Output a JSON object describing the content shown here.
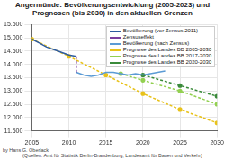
{
  "chart_data": {
    "type": "line",
    "title": "Angermünde: Bevölkerungsentwicklung (2005-2023) und Prognosen (bis 2030) in den aktuellen Grenzen",
    "annotations": [
      "by Hans G. Oberlack",
      "(Quellen: Amt für Statistik Berlin-Brandenburg, Landesamt für Bauen und Verkehr)"
    ],
    "xlim": [
      2005,
      2030
    ],
    "xticks": [
      2005,
      2010,
      2015,
      2020,
      2025,
      2030
    ],
    "ylim": [
      11500,
      15500
    ],
    "yticks": [
      {
        "value": 11500,
        "label": "11.500"
      },
      {
        "value": 12000,
        "label": "12.000"
      },
      {
        "value": 12500,
        "label": "12.500"
      },
      {
        "value": 13000,
        "label": "13.000"
      },
      {
        "value": 13500,
        "label": "13.500"
      },
      {
        "value": 14000,
        "label": "14.000"
      },
      {
        "value": 14500,
        "label": "14.500"
      },
      {
        "value": 15000,
        "label": "15.000"
      },
      {
        "value": 15500,
        "label": "15.500"
      }
    ],
    "grid": true,
    "legend": "top-right",
    "series": [
      {
        "name": "Bevölkerung (vor Zensus 2011)",
        "color": "#2e5c9e",
        "line_style": "solid",
        "marker": "none",
        "x": [
          2005,
          2006,
          2007,
          2008,
          2009,
          2010,
          2011
        ],
        "values": [
          14950,
          14800,
          14650,
          14550,
          14450,
          14350,
          14300
        ]
      },
      {
        "name": "Zensuseffekt",
        "color": "#7b3f9e",
        "line_style": "dashed",
        "marker": "none",
        "x": [
          2011,
          2011
        ],
        "values": [
          14300,
          13700
        ]
      },
      {
        "name": "Bevölkerung (nach Zensus)",
        "color": "#5b9bd5",
        "line_style": "solid",
        "marker": "none",
        "x": [
          2011,
          2012,
          2013,
          2014,
          2015,
          2016,
          2017,
          2018,
          2019,
          2020,
          2021,
          2022,
          2023
        ],
        "values": [
          13700,
          13600,
          13550,
          13600,
          13700,
          13700,
          13650,
          13600,
          13650,
          13600,
          13650,
          13700,
          13750
        ]
      },
      {
        "name": "Prognose des Landes BB 2005-2030",
        "color": "#e8c21a",
        "line_style": "dashed",
        "marker": "circle",
        "x": [
          2005,
          2010,
          2015,
          2020,
          2025,
          2030
        ],
        "values": [
          14950,
          14300,
          13600,
          12900,
          12300,
          11800
        ]
      },
      {
        "name": "Prognose des Landes BB 2017-2030",
        "color": "#92d050",
        "line_style": "dashed",
        "marker": "circle",
        "x": [
          2017,
          2020,
          2025,
          2030
        ],
        "values": [
          13650,
          13400,
          13000,
          12500
        ]
      },
      {
        "name": "Prognose des Landes BB 2020-2030",
        "color": "#3a8a3a",
        "line_style": "dashed",
        "marker": "circle",
        "x": [
          2020,
          2025,
          2030
        ],
        "values": [
          13600,
          13200,
          12800
        ]
      }
    ]
  }
}
